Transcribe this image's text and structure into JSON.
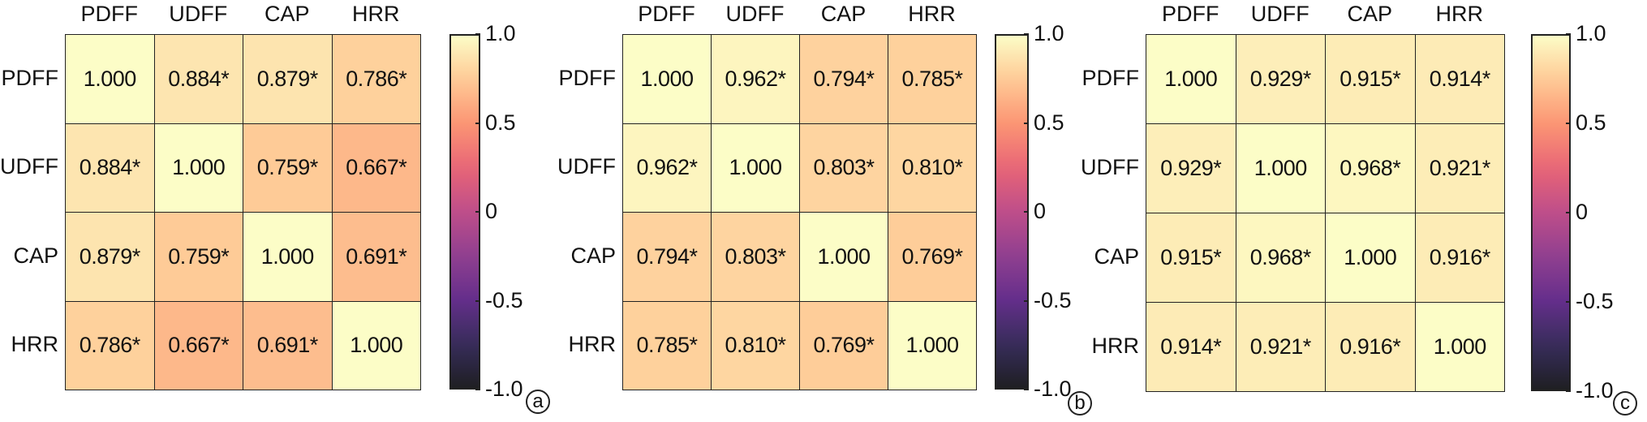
{
  "chart_data": [
    {
      "type": "heatmap",
      "panel_label": "a",
      "x_categories": [
        "PDFF",
        "UDFF",
        "CAP",
        "HRR"
      ],
      "y_categories": [
        "PDFF",
        "UDFF",
        "CAP",
        "HRR"
      ],
      "values": [
        [
          1.0,
          0.884,
          0.879,
          0.786
        ],
        [
          0.884,
          1.0,
          0.759,
          0.667
        ],
        [
          0.879,
          0.759,
          1.0,
          0.691
        ],
        [
          0.786,
          0.667,
          0.691,
          1.0
        ]
      ],
      "cell_labels": [
        [
          "1.000",
          "0.884*",
          "0.879*",
          "0.786*"
        ],
        [
          "0.884*",
          "1.000",
          "0.759*",
          "0.667*"
        ],
        [
          "0.879*",
          "0.759*",
          "1.000",
          "0.691*"
        ],
        [
          "0.786*",
          "0.667*",
          "0.691*",
          "1.000"
        ]
      ],
      "colorbar": {
        "colormap": "magma",
        "range": [
          -1.0,
          1.0
        ],
        "ticks": [
          "1.0",
          "0.5",
          "0",
          "-0.5",
          "-1.0"
        ]
      }
    },
    {
      "type": "heatmap",
      "panel_label": "b",
      "x_categories": [
        "PDFF",
        "UDFF",
        "CAP",
        "HRR"
      ],
      "y_categories": [
        "PDFF",
        "UDFF",
        "CAP",
        "HRR"
      ],
      "values": [
        [
          1.0,
          0.962,
          0.794,
          0.785
        ],
        [
          0.962,
          1.0,
          0.803,
          0.81
        ],
        [
          0.794,
          0.803,
          1.0,
          0.769
        ],
        [
          0.785,
          0.81,
          0.769,
          1.0
        ]
      ],
      "cell_labels": [
        [
          "1.000",
          "0.962*",
          "0.794*",
          "0.785*"
        ],
        [
          "0.962*",
          "1.000",
          "0.803*",
          "0.810*"
        ],
        [
          "0.794*",
          "0.803*",
          "1.000",
          "0.769*"
        ],
        [
          "0.785*",
          "0.810*",
          "0.769*",
          "1.000"
        ]
      ],
      "colorbar": {
        "colormap": "magma",
        "range": [
          -1.0,
          1.0
        ],
        "ticks": [
          "1.0",
          "0.5",
          "0",
          "-0.5",
          "-1.0"
        ]
      }
    },
    {
      "type": "heatmap",
      "panel_label": "c",
      "x_categories": [
        "PDFF",
        "UDFF",
        "CAP",
        "HRR"
      ],
      "y_categories": [
        "PDFF",
        "UDFF",
        "CAP",
        "HRR"
      ],
      "values": [
        [
          1.0,
          0.929,
          0.915,
          0.914
        ],
        [
          0.929,
          1.0,
          0.968,
          0.921
        ],
        [
          0.915,
          0.968,
          1.0,
          0.916
        ],
        [
          0.914,
          0.921,
          0.916,
          1.0
        ]
      ],
      "cell_labels": [
        [
          "1.000",
          "0.929*",
          "0.915*",
          "0.914*"
        ],
        [
          "0.929*",
          "1.000",
          "0.968*",
          "0.921*"
        ],
        [
          "0.915*",
          "0.968*",
          "1.000",
          "0.916*"
        ],
        [
          "0.914*",
          "0.921*",
          "0.916*",
          "1.000"
        ]
      ],
      "colorbar": {
        "colormap": "magma",
        "range": [
          -1.0,
          1.0
        ],
        "ticks": [
          "1.0",
          "0.5",
          "0",
          "-0.5",
          "-1.0"
        ]
      }
    }
  ]
}
